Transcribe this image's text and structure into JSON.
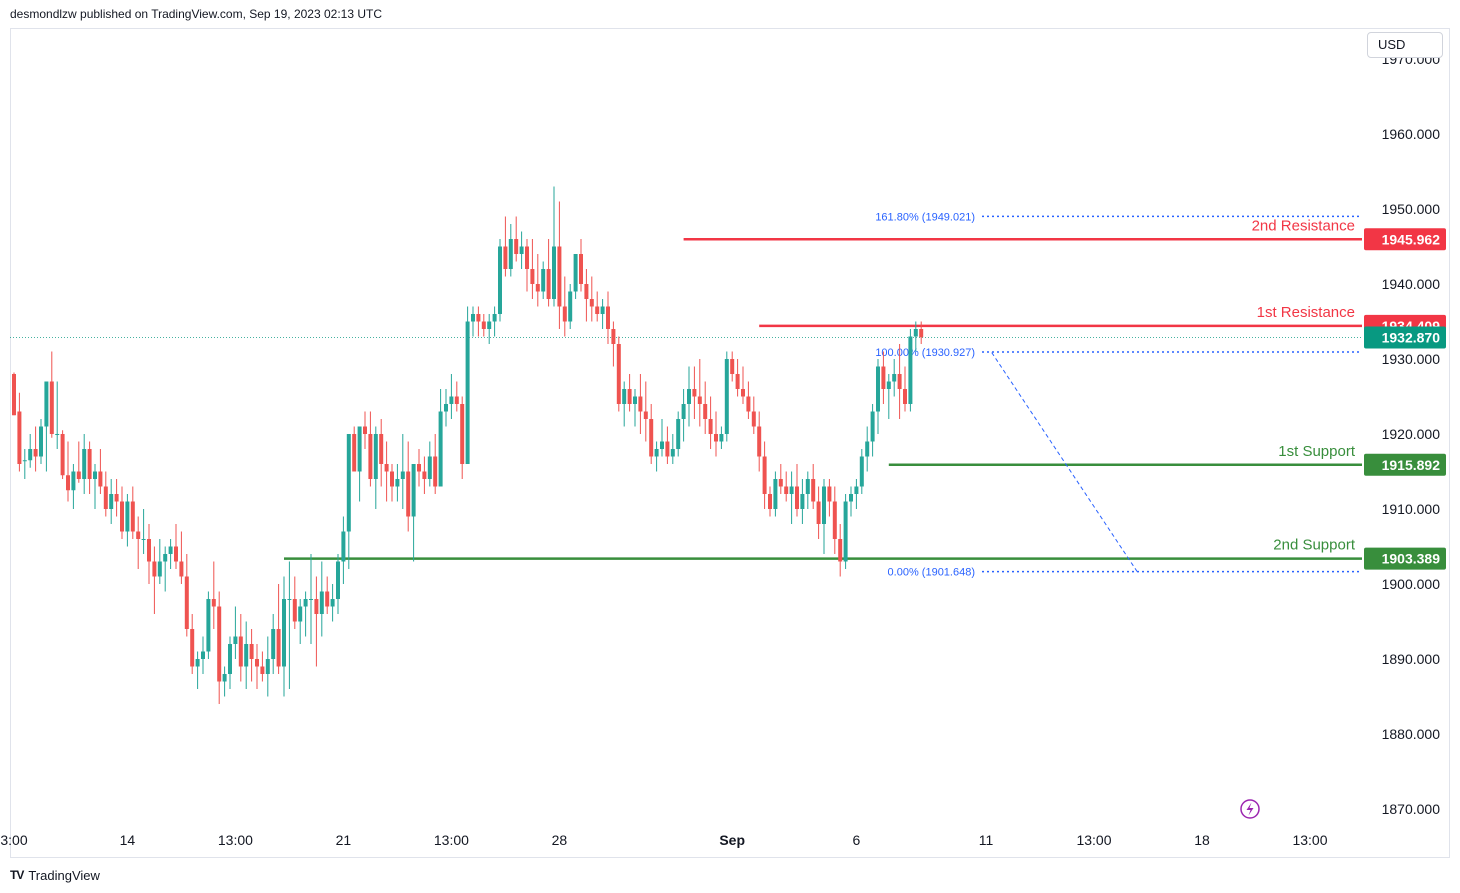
{
  "header": {
    "published": "desmondlzw published on TradingView.com, Sep 19, 2023 02:13 UTC"
  },
  "currency": "USD",
  "footer": {
    "logo_mark": "TV",
    "logo_text": "TradingView"
  },
  "colors": {
    "up": "#26a69a",
    "down": "#ef5350",
    "resistance": "#f23645",
    "support": "#388e3c",
    "fib": "#2962ff",
    "last": "#089981"
  },
  "chart_data": {
    "type": "candlestick",
    "title": "",
    "ylim": [
      1865,
      1972
    ],
    "y_ticks": [
      {
        "value": 1970,
        "label": "1970.000"
      },
      {
        "value": 1960,
        "label": "1960.000"
      },
      {
        "value": 1950,
        "label": "1950.000"
      },
      {
        "value": 1940,
        "label": "1940.000"
      },
      {
        "value": 1930,
        "label": "1930.000"
      },
      {
        "value": 1920,
        "label": "1920.000"
      },
      {
        "value": 1910,
        "label": "1910.000"
      },
      {
        "value": 1900,
        "label": "1900.000"
      },
      {
        "value": 1890,
        "label": "1890.000"
      },
      {
        "value": 1880,
        "label": "1880.000"
      },
      {
        "value": 1870,
        "label": "1870.000"
      }
    ],
    "x_ticks": [
      {
        "index": 0,
        "label": "3:00",
        "bold": false
      },
      {
        "index": 21,
        "label": "14",
        "bold": false
      },
      {
        "index": 41,
        "label": "13:00",
        "bold": false
      },
      {
        "index": 61,
        "label": "21",
        "bold": false
      },
      {
        "index": 81,
        "label": "13:00",
        "bold": false
      },
      {
        "index": 101,
        "label": "28",
        "bold": false
      },
      {
        "index": 133,
        "label": "Sep",
        "bold": true
      },
      {
        "index": 156,
        "label": "6",
        "bold": false
      },
      {
        "index": 180,
        "label": "11",
        "bold": false
      },
      {
        "index": 200,
        "label": "13:00",
        "bold": false
      },
      {
        "index": 220,
        "label": "18",
        "bold": false
      },
      {
        "index": 240,
        "label": "13:00",
        "bold": false
      }
    ],
    "levels": [
      {
        "name": "2nd Resistance",
        "value": 1945.962,
        "label": "1945.962",
        "kind": "resistance",
        "from_index": 124
      },
      {
        "name": "1st Resistance",
        "value": 1934.409,
        "label": "1934.409",
        "kind": "resistance",
        "from_index": 138
      },
      {
        "name": "1st Support",
        "value": 1915.892,
        "label": "1915.892",
        "kind": "support",
        "from_index": 162
      },
      {
        "name": "2nd Support",
        "value": 1903.389,
        "label": "1903.389",
        "kind": "support",
        "from_index": 50
      }
    ],
    "fib_levels": [
      {
        "label": "161.80% (1949.021)",
        "value": 1949.021
      },
      {
        "label": "100.00% (1930.927)",
        "value": 1930.927
      },
      {
        "label": "0.00% (1901.648)",
        "value": 1901.648
      }
    ],
    "last_price": {
      "value": 1932.87,
      "label": "1932.870"
    },
    "candles": [
      [
        1928,
        1928.2,
        1922.5,
        1922.5
      ],
      [
        1923,
        1925.5,
        1915,
        1916
      ],
      [
        1916.5,
        1918,
        1914,
        1916.5
      ],
      [
        1916.5,
        1920,
        1915.5,
        1918
      ],
      [
        1918,
        1921,
        1915,
        1917
      ],
      [
        1917,
        1922,
        1916,
        1921
      ],
      [
        1921,
        1927,
        1915,
        1927
      ],
      [
        1927,
        1931,
        1919.5,
        1920
      ],
      [
        1920,
        1927,
        1918,
        1920
      ],
      [
        1920,
        1920.5,
        1914,
        1914.5
      ],
      [
        1914.5,
        1919,
        1911,
        1912.5
      ],
      [
        1912.5,
        1916,
        1910,
        1915
      ],
      [
        1915,
        1919,
        1913.5,
        1914
      ],
      [
        1914,
        1920,
        1912,
        1918
      ],
      [
        1918,
        1919,
        1912,
        1914
      ],
      [
        1914,
        1916,
        1910,
        1915
      ],
      [
        1915,
        1918,
        1912,
        1913
      ],
      [
        1913,
        1915,
        1909,
        1910
      ],
      [
        1910,
        1914,
        1908,
        1912
      ],
      [
        1912,
        1914,
        1909,
        1911
      ],
      [
        1911,
        1913,
        1906,
        1907
      ],
      [
        1907,
        1912,
        1905,
        1911
      ],
      [
        1911,
        1913,
        1906,
        1907
      ],
      [
        1907,
        1909,
        1902,
        1906
      ],
      [
        1906,
        1910,
        1904,
        1906
      ],
      [
        1906,
        1908,
        1900,
        1903
      ],
      [
        1903,
        1905,
        1896,
        1901
      ],
      [
        1901,
        1906,
        1900,
        1903
      ],
      [
        1903,
        1905,
        1899,
        1904
      ],
      [
        1904,
        1906,
        1902,
        1905
      ],
      [
        1905,
        1908,
        1902,
        1903
      ],
      [
        1903,
        1907,
        1900,
        1901
      ],
      [
        1901,
        1904,
        1893,
        1894
      ],
      [
        1894,
        1896,
        1888,
        1889
      ],
      [
        1889,
        1891,
        1886,
        1890
      ],
      [
        1890,
        1893,
        1888,
        1891
      ],
      [
        1891,
        1899,
        1890,
        1898
      ],
      [
        1898,
        1903,
        1894,
        1897
      ],
      [
        1897,
        1899,
        1884,
        1887
      ],
      [
        1887,
        1889,
        1885,
        1888
      ],
      [
        1888,
        1893,
        1886,
        1892
      ],
      [
        1892,
        1897,
        1890,
        1893
      ],
      [
        1893,
        1896,
        1887,
        1889
      ],
      [
        1889,
        1895,
        1886,
        1892
      ],
      [
        1892,
        1894,
        1887,
        1890
      ],
      [
        1890,
        1892,
        1886,
        1889
      ],
      [
        1889,
        1891,
        1887,
        1888
      ],
      [
        1888,
        1893,
        1885,
        1890
      ],
      [
        1890,
        1896,
        1888,
        1894
      ],
      [
        1894,
        1900,
        1888,
        1889
      ],
      [
        1889,
        1901,
        1885,
        1898
      ],
      [
        1898,
        1903,
        1886,
        1898
      ],
      [
        1898,
        1901,
        1894,
        1895
      ],
      [
        1895,
        1898,
        1892,
        1897
      ],
      [
        1897,
        1899,
        1893,
        1898
      ],
      [
        1898,
        1904,
        1892,
        1898
      ],
      [
        1898,
        1901,
        1889,
        1896
      ],
      [
        1896,
        1903,
        1893,
        1899
      ],
      [
        1899,
        1901,
        1896,
        1897
      ],
      [
        1897,
        1900,
        1895,
        1898
      ],
      [
        1898,
        1904,
        1896,
        1903
      ],
      [
        1903,
        1909,
        1900,
        1907
      ],
      [
        1907,
        1920,
        1902,
        1920
      ],
      [
        1920,
        1921,
        1915,
        1915
      ],
      [
        1915,
        1921,
        1911,
        1921
      ],
      [
        1921,
        1923,
        1918,
        1920
      ],
      [
        1920,
        1923,
        1913,
        1914
      ],
      [
        1914,
        1921,
        1910,
        1920
      ],
      [
        1920,
        1922,
        1913,
        1916
      ],
      [
        1916,
        1919,
        1911,
        1915
      ],
      [
        1915,
        1916,
        1911,
        1913
      ],
      [
        1913,
        1916,
        1911,
        1914
      ],
      [
        1914,
        1920,
        1910,
        1915
      ],
      [
        1915,
        1919,
        1907,
        1909
      ],
      [
        1909,
        1916,
        1903,
        1916
      ],
      [
        1916,
        1918,
        1913,
        1915
      ],
      [
        1915,
        1917,
        1912,
        1914
      ],
      [
        1914,
        1919,
        1913,
        1917
      ],
      [
        1917,
        1920,
        1912,
        1913
      ],
      [
        1913,
        1926,
        1913,
        1923
      ],
      [
        1923,
        1926,
        1921,
        1924
      ],
      [
        1924,
        1928,
        1922,
        1925
      ],
      [
        1925,
        1927,
        1923,
        1924
      ],
      [
        1924,
        1925,
        1914,
        1916
      ],
      [
        1916,
        1937,
        1916,
        1935
      ],
      [
        1935,
        1937,
        1933,
        1936
      ],
      [
        1936,
        1937,
        1933,
        1935
      ],
      [
        1935,
        1936,
        1933,
        1934
      ],
      [
        1934,
        1936,
        1932,
        1935
      ],
      [
        1935,
        1937,
        1933,
        1936
      ],
      [
        1936,
        1946,
        1935,
        1945
      ],
      [
        1945,
        1949,
        1941,
        1942
      ],
      [
        1942,
        1948,
        1941,
        1946
      ],
      [
        1946,
        1949,
        1943,
        1944
      ],
      [
        1944,
        1947,
        1942,
        1945
      ],
      [
        1945,
        1946,
        1939,
        1942
      ],
      [
        1942,
        1946,
        1938,
        1940
      ],
      [
        1940,
        1944,
        1937,
        1939
      ],
      [
        1939,
        1943,
        1938,
        1942
      ],
      [
        1942,
        1946,
        1937,
        1938
      ],
      [
        1938,
        1953,
        1937,
        1945
      ],
      [
        1945,
        1951,
        1934,
        1937
      ],
      [
        1937,
        1941,
        1933,
        1935
      ],
      [
        1935,
        1940,
        1934,
        1939
      ],
      [
        1939,
        1944,
        1938,
        1944
      ],
      [
        1944,
        1946,
        1939,
        1940
      ],
      [
        1940,
        1942,
        1935,
        1938
      ],
      [
        1938,
        1941,
        1935,
        1937
      ],
      [
        1937,
        1939,
        1935,
        1936
      ],
      [
        1936,
        1938,
        1934,
        1937
      ],
      [
        1937,
        1939,
        1932,
        1934
      ],
      [
        1934,
        1935,
        1929,
        1932
      ],
      [
        1932,
        1933,
        1923,
        1924
      ],
      [
        1924,
        1927,
        1921,
        1926
      ],
      [
        1926,
        1928,
        1923,
        1924
      ],
      [
        1924,
        1926,
        1921,
        1925
      ],
      [
        1925,
        1928,
        1920,
        1923
      ],
      [
        1923,
        1927,
        1919,
        1922
      ],
      [
        1922,
        1924,
        1916,
        1917
      ],
      [
        1917,
        1919,
        1915,
        1918
      ],
      [
        1918,
        1922,
        1917,
        1919
      ],
      [
        1919,
        1921,
        1916,
        1917
      ],
      [
        1917,
        1920,
        1916,
        1918
      ],
      [
        1918,
        1923,
        1917,
        1922
      ],
      [
        1922,
        1926,
        1919,
        1924
      ],
      [
        1924,
        1929,
        1921,
        1926
      ],
      [
        1926,
        1929,
        1922,
        1925
      ],
      [
        1925,
        1930,
        1921,
        1924
      ],
      [
        1924,
        1927,
        1920,
        1922
      ],
      [
        1922,
        1925,
        1918,
        1920
      ],
      [
        1920,
        1923,
        1917,
        1919
      ],
      [
        1919,
        1921,
        1918,
        1920
      ],
      [
        1920,
        1931,
        1919,
        1930
      ],
      [
        1930,
        1931,
        1927,
        1928
      ],
      [
        1928,
        1930,
        1925,
        1926
      ],
      [
        1926,
        1929,
        1924,
        1925
      ],
      [
        1925,
        1927,
        1922,
        1923
      ],
      [
        1923,
        1925,
        1920,
        1921
      ],
      [
        1921,
        1923,
        1915,
        1917
      ],
      [
        1917,
        1919,
        1910,
        1912
      ],
      [
        1912,
        1913,
        1909,
        1910
      ],
      [
        1910,
        1915,
        1909,
        1914
      ],
      [
        1914,
        1916,
        1912,
        1913
      ],
      [
        1913,
        1915,
        1911,
        1912
      ],
      [
        1912,
        1915,
        1908,
        1913
      ],
      [
        1913,
        1916,
        1909,
        1910
      ],
      [
        1910,
        1914,
        1908,
        1912
      ],
      [
        1912,
        1915,
        1910,
        1914
      ],
      [
        1914,
        1916,
        1910,
        1911
      ],
      [
        1911,
        1913,
        1906,
        1908
      ],
      [
        1908,
        1914,
        1904,
        1913
      ],
      [
        1913,
        1914,
        1909,
        1911
      ],
      [
        1911,
        1913,
        1904,
        1906
      ],
      [
        1906,
        1908,
        1901,
        1903
      ],
      [
        1903,
        1912,
        1902,
        1911
      ],
      [
        1911,
        1913,
        1909,
        1912
      ],
      [
        1912,
        1914,
        1910,
        1913
      ],
      [
        1913,
        1918,
        1912,
        1917
      ],
      [
        1917,
        1921,
        1915,
        1919
      ],
      [
        1919,
        1924,
        1917,
        1923
      ],
      [
        1923,
        1930,
        1920,
        1929
      ],
      [
        1929,
        1931,
        1924,
        1926
      ],
      [
        1926,
        1928,
        1922,
        1927
      ],
      [
        1927,
        1930,
        1925,
        1928
      ],
      [
        1928,
        1932,
        1922,
        1926
      ],
      [
        1926,
        1929,
        1923,
        1924
      ],
      [
        1924,
        1934,
        1923,
        1933
      ],
      [
        1933,
        1935,
        1931,
        1934
      ],
      [
        1934,
        1935,
        1932,
        1932.9
      ]
    ]
  }
}
